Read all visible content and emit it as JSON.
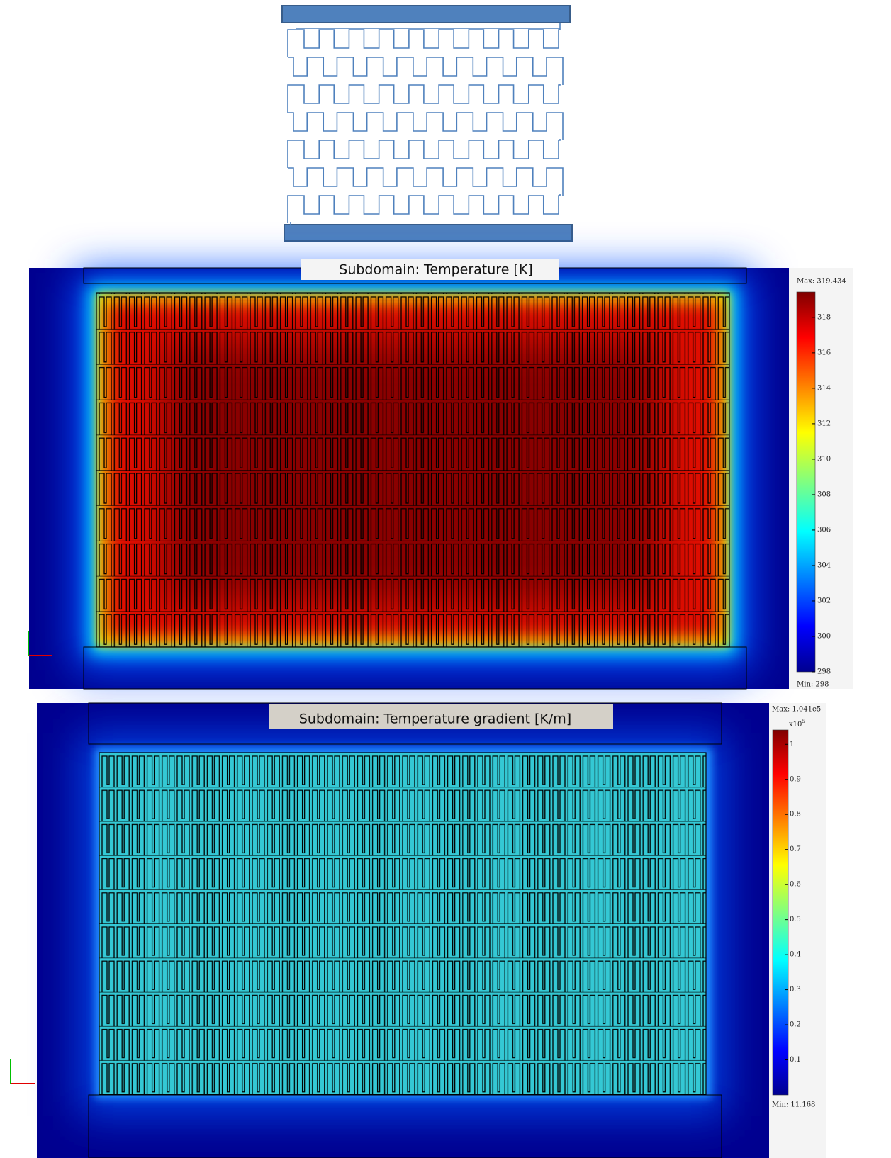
{
  "panels": [
    {
      "title": "Subdomain: Temperature [K]",
      "colorbar": {
        "max": {
          "value": 319.434,
          "label": "Max: 319.434"
        },
        "min": {
          "value": 298,
          "label": "Min: 298"
        },
        "ticks": [
          298,
          300,
          302,
          304,
          306,
          308,
          310,
          312,
          314,
          316,
          318
        ]
      }
    },
    {
      "title": "Subdomain: Temperature gradient [K/m]",
      "colorbar": {
        "max": {
          "value": 1.041,
          "label": "Max: 1.041e5"
        },
        "min": {
          "value": 0.00011168,
          "label": "Min: 11.168"
        },
        "multiplier": {
          "base": "x10",
          "exponent": "5"
        },
        "ticks": [
          0.1,
          0.2,
          0.3,
          0.4,
          0.5,
          0.6,
          0.7,
          0.8,
          0.9,
          1
        ]
      }
    }
  ]
}
